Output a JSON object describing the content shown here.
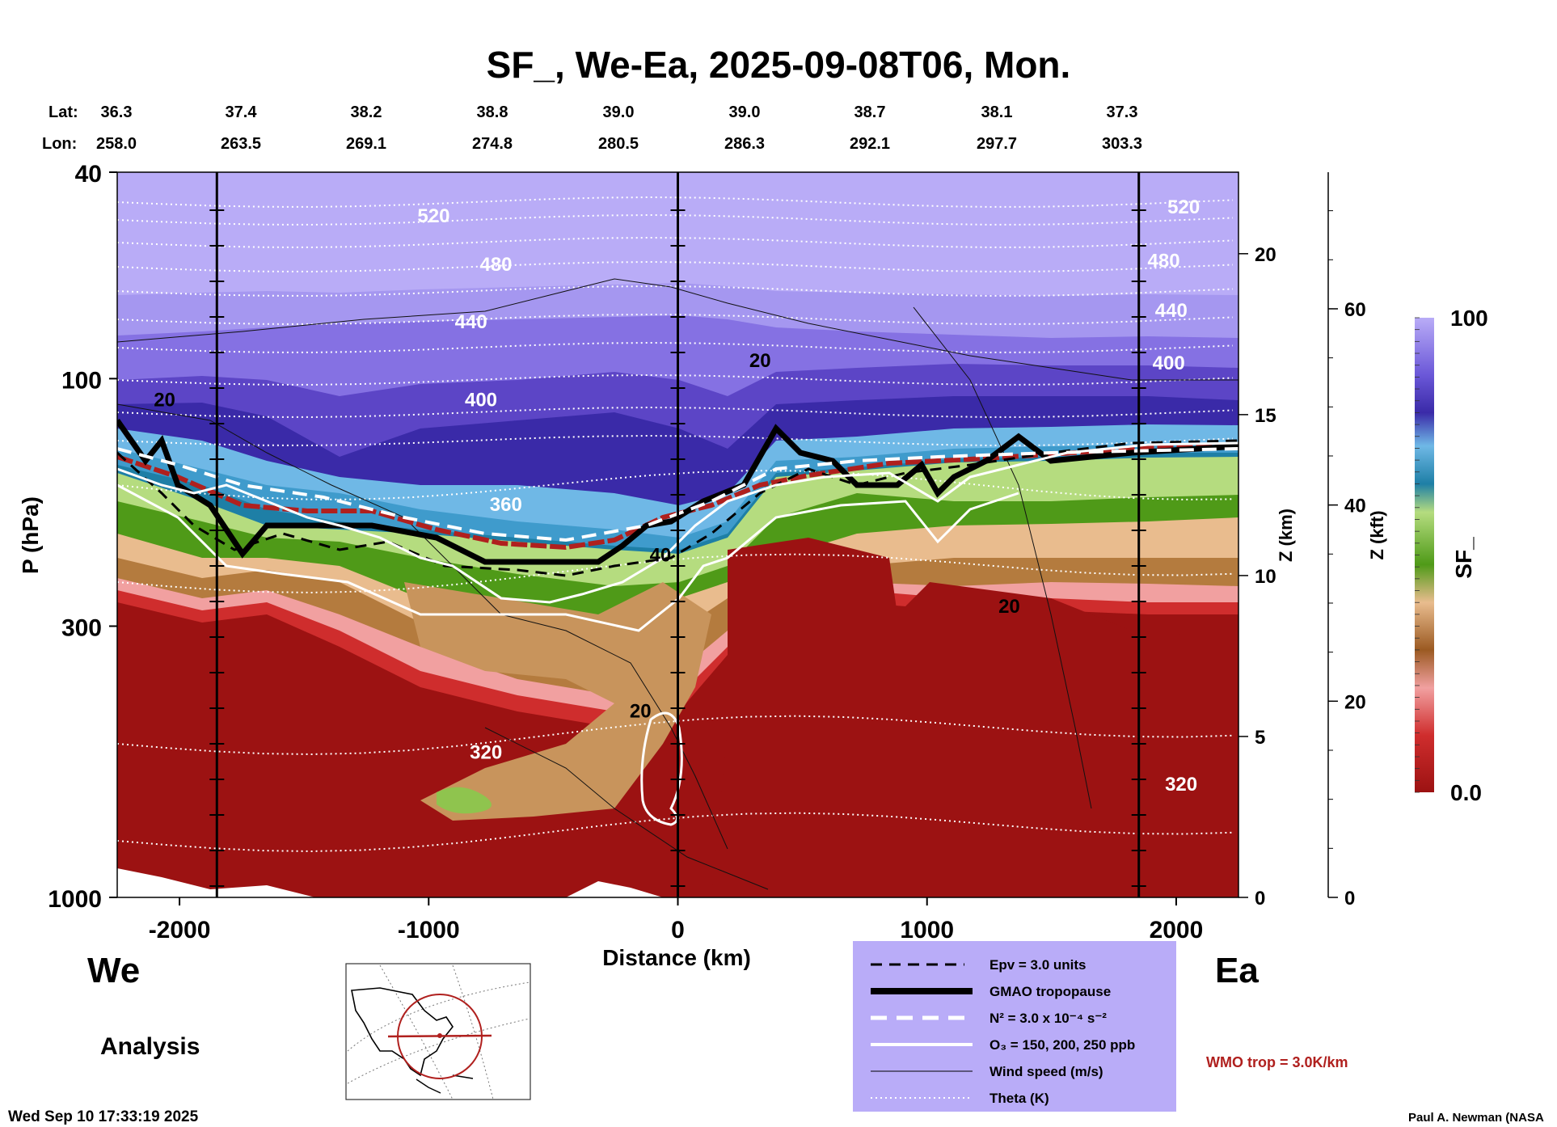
{
  "chart_data": {
    "type": "heatmap",
    "title": "SF_, We-Ea, 2025-09-08T06, Mon.",
    "xlabel": "Distance (km)",
    "ylabel": "P (hPa)",
    "z_km_label": "Z (km)",
    "z_kft_label": "Z (kft)",
    "colorbar_label": "SF_",
    "xlim": [
      -2250,
      2250
    ],
    "ylim": [
      1000,
      40
    ],
    "x_ticks": [
      -2000,
      -1000,
      0,
      1000,
      2000
    ],
    "x_tick_labels": [
      "-2000",
      "-1000",
      "0",
      "1000",
      "2000"
    ],
    "p_ticks": [
      40,
      100,
      300,
      1000
    ],
    "p_tick_labels": [
      "40",
      "100",
      "300",
      "1000"
    ],
    "z_km_ticks": [
      0,
      5,
      10,
      15,
      20
    ],
    "z_kft_ticks": [
      0,
      20,
      40,
      60
    ],
    "colorbar_range": [
      0.0,
      100
    ],
    "colorbar_labels": [
      "100",
      "0.0"
    ],
    "lat_label": "Lat:",
    "lon_label": "Lon:",
    "cross_points": [
      {
        "lat": "36.3",
        "lon": "258.0"
      },
      {
        "lat": "37.4",
        "lon": "263.5"
      },
      {
        "lat": "38.2",
        "lon": "269.1"
      },
      {
        "lat": "38.8",
        "lon": "274.8"
      },
      {
        "lat": "39.0",
        "lon": "280.5"
      },
      {
        "lat": "39.0",
        "lon": "286.3"
      },
      {
        "lat": "38.7",
        "lon": "292.1"
      },
      {
        "lat": "38.1",
        "lon": "297.7"
      },
      {
        "lat": "37.3",
        "lon": "303.3"
      }
    ],
    "vertical_markers_km": [
      -1850,
      0,
      1850
    ],
    "theta_labels": [
      {
        "x": -980,
        "p": 50,
        "text": "520"
      },
      {
        "x": -730,
        "p": 62,
        "text": "480"
      },
      {
        "x": -830,
        "p": 80,
        "text": "440"
      },
      {
        "x": -790,
        "p": 113,
        "text": "400"
      },
      {
        "x": -690,
        "p": 180,
        "text": "360"
      },
      {
        "x": -770,
        "p": 540,
        "text": "320"
      },
      {
        "x": 2030,
        "p": 48,
        "text": "520"
      },
      {
        "x": 1950,
        "p": 61,
        "text": "480"
      },
      {
        "x": 1980,
        "p": 76,
        "text": "440"
      },
      {
        "x": 1970,
        "p": 96,
        "text": "400"
      },
      {
        "x": 2020,
        "p": 623,
        "text": "320"
      }
    ],
    "wind_labels": [
      {
        "x": -2060,
        "p": 113,
        "text": "20"
      },
      {
        "x": 330,
        "p": 95,
        "text": "20"
      },
      {
        "x": 1330,
        "p": 283,
        "text": "20"
      },
      {
        "x": -150,
        "p": 450,
        "text": "20"
      },
      {
        "x": -70,
        "p": 225,
        "text": "40"
      }
    ],
    "legend": [
      {
        "style": "dashed-black",
        "label": "Epv = 3.0 units"
      },
      {
        "style": "thick-black",
        "label": "GMAO tropopause"
      },
      {
        "style": "dashed-white",
        "label": "N² = 3.0 x 10⁻⁴ s⁻²"
      },
      {
        "style": "solid-white",
        "label": "O₃ = 150, 200, 250 ppb"
      },
      {
        "style": "thin-black",
        "label": "Wind speed (m/s)"
      },
      {
        "style": "dotted-white",
        "label": "Theta (K)"
      }
    ],
    "wmo_trop_label": "WMO trop = 3.0K/km"
  },
  "labels": {
    "west": "We",
    "east": "Ea",
    "analysis": "Analysis",
    "timestamp": "Wed Sep 10 17:33:19 2025",
    "credit": "Paul A. Newman (NASA"
  },
  "colors": {
    "wmo_red": "#b0201e",
    "legend_bg": "#b9acf8",
    "stratosphere_top": "#b9acf7",
    "surface_red": "#9c1212"
  }
}
